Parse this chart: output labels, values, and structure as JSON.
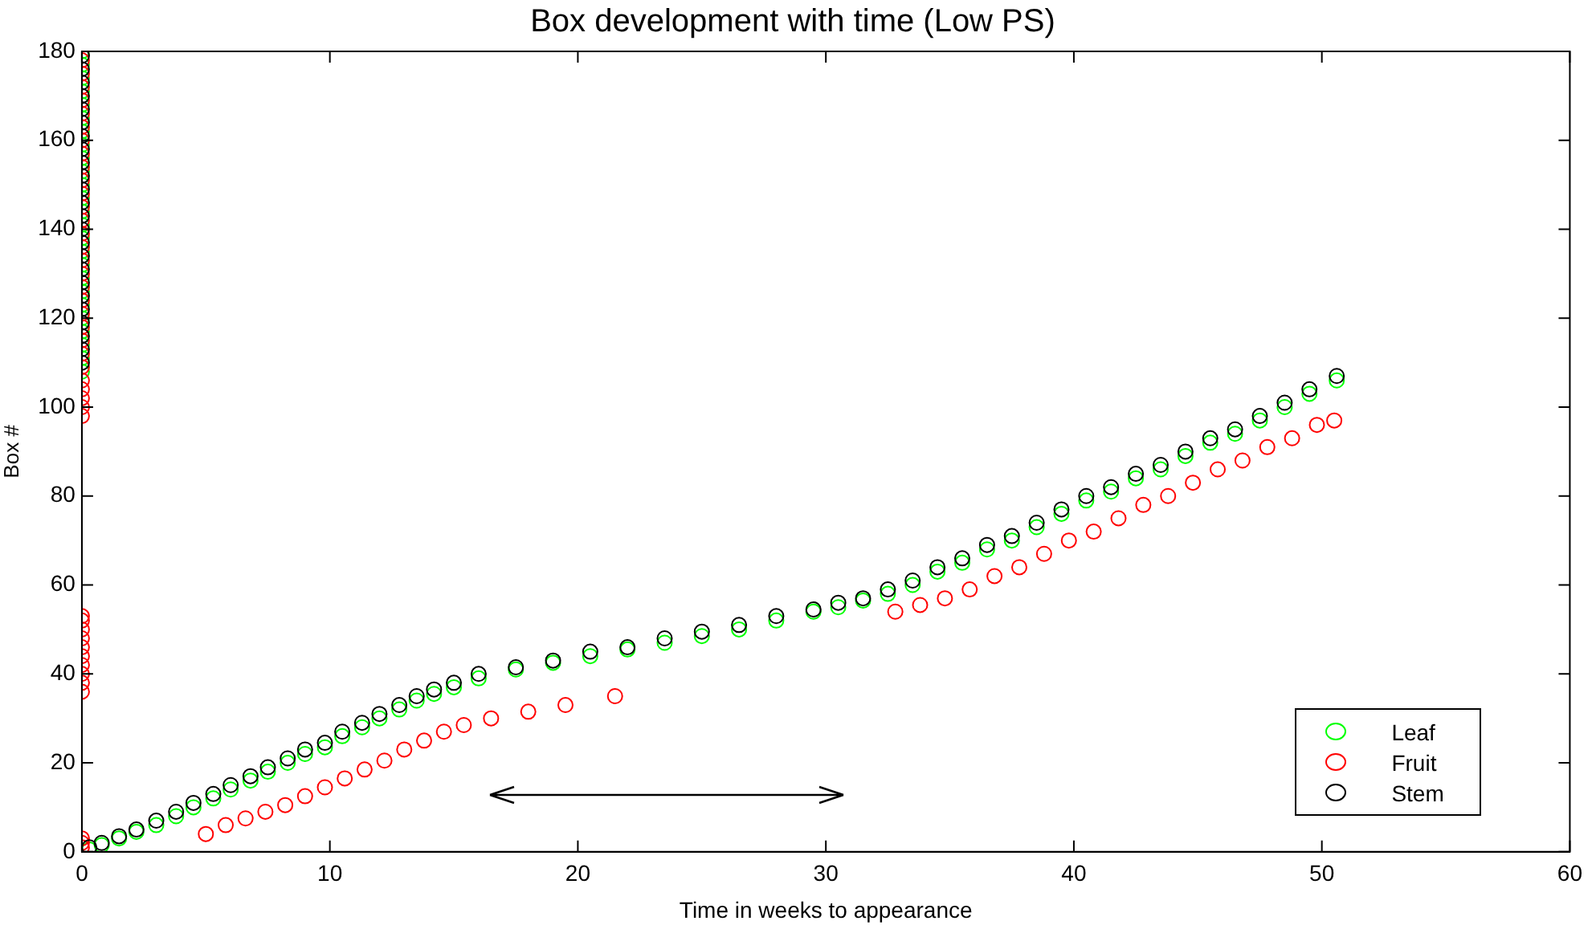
{
  "chart_data": {
    "type": "scatter",
    "title": "Box development with time (Low PS)",
    "xlabel": "Time in weeks to appearance",
    "ylabel": "Box #",
    "xlim": [
      0,
      60
    ],
    "xticks": [
      0,
      10,
      20,
      30,
      40,
      50,
      60
    ],
    "ylim": [
      0,
      180
    ],
    "yticks": [
      0,
      20,
      40,
      60,
      80,
      100,
      120,
      140,
      160,
      180
    ],
    "grid": false,
    "legend": "bottom right",
    "marker": "circle",
    "series": [
      {
        "name": "Leaf",
        "color": "#00ff00",
        "x": [
          0,
          0,
          0,
          0,
          0,
          0,
          0,
          0,
          0,
          0,
          0,
          0,
          0,
          0,
          0,
          0,
          0,
          0,
          0,
          0,
          0,
          0,
          0,
          0,
          0,
          0.3,
          0.8,
          1.5,
          2.2,
          3,
          3.8,
          4.5,
          5.3,
          6,
          6.8,
          7.5,
          8.3,
          9,
          9.8,
          10.5,
          11.3,
          12,
          12.8,
          13.5,
          14.2,
          15,
          16,
          17.5,
          19,
          20.5,
          22,
          23.5,
          25,
          26.5,
          28,
          29.5,
          30.5,
          31.5,
          32.5,
          33.5,
          34.5,
          35.5,
          36.5,
          37.5,
          38.5,
          39.5,
          40.5,
          41.5,
          42.5,
          43.5,
          44.5,
          45.5,
          46.5,
          47.5,
          48.5,
          49.5,
          50.6
        ],
        "values": [
          108,
          111,
          114,
          117,
          120,
          123,
          126,
          129,
          132,
          135,
          138,
          141,
          144,
          147,
          150,
          153,
          156,
          159,
          162,
          165,
          168,
          171,
          174,
          177,
          180,
          0.5,
          1.5,
          3,
          4.5,
          6,
          8,
          10,
          12,
          14,
          16,
          18,
          20,
          22,
          23.5,
          26,
          28,
          30,
          32,
          34,
          35.5,
          37,
          39,
          41,
          42.5,
          44,
          45.5,
          47,
          48.5,
          50,
          52,
          54,
          55,
          56.5,
          58,
          60,
          63,
          65,
          68,
          70,
          73,
          76,
          79,
          81,
          84,
          86,
          89,
          92,
          94,
          97,
          100,
          103,
          106
        ]
      },
      {
        "name": "Fruit",
        "color": "#ff0000",
        "x": [
          0,
          0,
          0,
          0,
          0,
          0,
          0,
          0,
          0,
          0,
          0,
          0,
          0,
          0,
          0,
          0,
          0,
          0,
          0,
          0,
          0,
          0,
          0,
          0,
          0,
          0,
          0,
          0,
          0,
          0,
          0,
          0,
          0,
          0,
          0,
          0,
          0,
          0,
          0,
          0,
          0,
          0,
          5,
          5.8,
          6.6,
          7.4,
          8.2,
          9,
          9.8,
          10.6,
          11.4,
          12.2,
          13,
          13.8,
          14.6,
          15.4,
          16.5,
          18,
          19.5,
          21.5,
          32.8,
          33.8,
          34.8,
          35.8,
          36.8,
          37.8,
          38.8,
          39.8,
          40.8,
          41.8,
          42.8,
          43.8,
          44.8,
          45.8,
          46.8,
          47.8,
          48.8,
          49.8,
          50.5
        ],
        "values": [
          1,
          2,
          3,
          36,
          38,
          40,
          42,
          44,
          46,
          48,
          50,
          52,
          53,
          98,
          100,
          102,
          104,
          106,
          109,
          112,
          115,
          118,
          121,
          124,
          127,
          130,
          133,
          136,
          139,
          142,
          145,
          148,
          151,
          154,
          157,
          160,
          163,
          166,
          169,
          172,
          175,
          178,
          4,
          6,
          7.5,
          9,
          10.5,
          12.5,
          14.5,
          16.5,
          18.5,
          20.5,
          23,
          25,
          27,
          28.5,
          30,
          31.5,
          33,
          35,
          54,
          55.5,
          57,
          59,
          62,
          64,
          67,
          70,
          72,
          75,
          78,
          80,
          83,
          86,
          88,
          91,
          93,
          96,
          97
        ]
      },
      {
        "name": "Stem",
        "color": "#000000",
        "x": [
          0,
          0,
          0,
          0,
          0,
          0,
          0,
          0,
          0,
          0,
          0,
          0,
          0,
          0,
          0,
          0,
          0,
          0,
          0,
          0,
          0,
          0,
          0,
          0,
          0.3,
          0.8,
          1.5,
          2.2,
          3,
          3.8,
          4.5,
          5.3,
          6,
          6.8,
          7.5,
          8.3,
          9,
          9.8,
          10.5,
          11.3,
          12,
          12.8,
          13.5,
          14.2,
          15,
          16,
          17.5,
          19,
          20.5,
          22,
          23.5,
          25,
          26.5,
          28,
          29.5,
          30.5,
          31.5,
          32.5,
          33.5,
          34.5,
          35.5,
          36.5,
          37.5,
          38.5,
          39.5,
          40.5,
          41.5,
          42.5,
          43.5,
          44.5,
          45.5,
          46.5,
          47.5,
          48.5,
          49.5,
          50.6
        ],
        "values": [
          110,
          113,
          116,
          119,
          122,
          125,
          128,
          131,
          134,
          137,
          140,
          143,
          146,
          149,
          152,
          155,
          158,
          161,
          164,
          167,
          170,
          173,
          176,
          179,
          1,
          2,
          3.5,
          5,
          7,
          9,
          11,
          13,
          15,
          17,
          19,
          21,
          23,
          24.5,
          27,
          29,
          31,
          33,
          35,
          36.5,
          38,
          40,
          41.5,
          43,
          45,
          46,
          48,
          49.5,
          51,
          53,
          54.5,
          56,
          57,
          59,
          61,
          64,
          66,
          69,
          71,
          74,
          77,
          80,
          82,
          85,
          87,
          90,
          93,
          95,
          98,
          101,
          104,
          107
        ]
      }
    ]
  }
}
